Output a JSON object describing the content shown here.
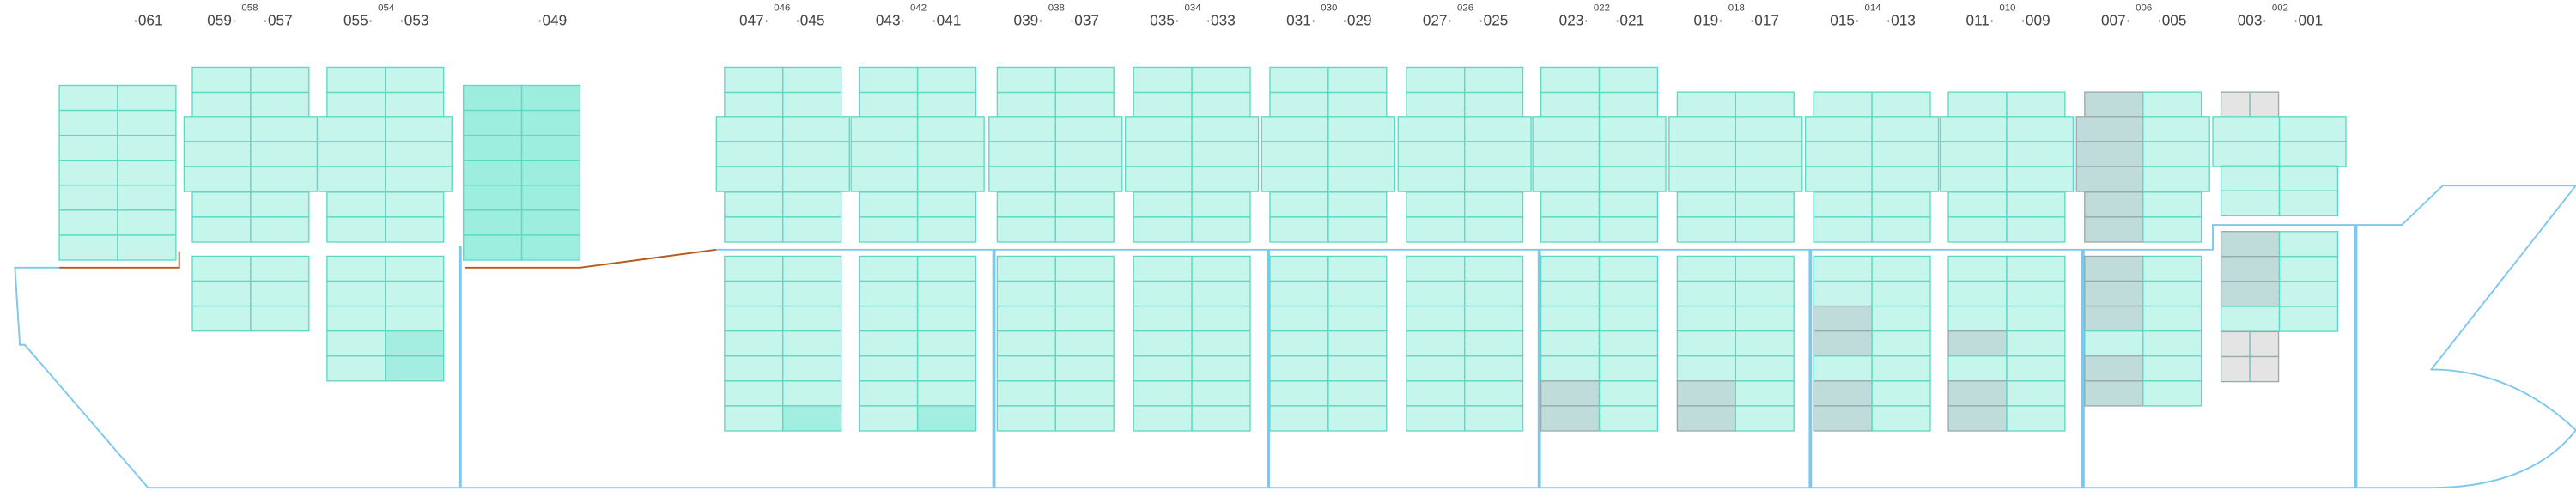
{
  "bays": [
    {
      "labels": [
        "·061"
      ]
    },
    {
      "labels": [
        "059·",
        "058",
        "·057"
      ]
    },
    {
      "labels": [
        "055·",
        "054",
        "·053"
      ]
    },
    {
      "labels": [
        "·049"
      ]
    },
    {
      "labels": [
        "047·",
        "046",
        "·045"
      ]
    },
    {
      "labels": [
        "043·",
        "042",
        "·041"
      ]
    },
    {
      "labels": [
        "039·",
        "038",
        "·037"
      ]
    },
    {
      "labels": [
        "035·",
        "034",
        "·033"
      ]
    },
    {
      "labels": [
        "031·",
        "030",
        "·029"
      ]
    },
    {
      "labels": [
        "027·",
        "026",
        "·025"
      ]
    },
    {
      "labels": [
        "023·",
        "022",
        "·021"
      ]
    },
    {
      "labels": [
        "019·",
        "018",
        "·017"
      ]
    },
    {
      "labels": [
        "015·",
        "014",
        "·013"
      ]
    },
    {
      "labels": [
        "011·",
        "010",
        "·009"
      ]
    },
    {
      "labels": [
        "007·",
        "006",
        "·005"
      ]
    },
    {
      "labels": [
        "003·",
        "002",
        "·001"
      ]
    }
  ]
}
